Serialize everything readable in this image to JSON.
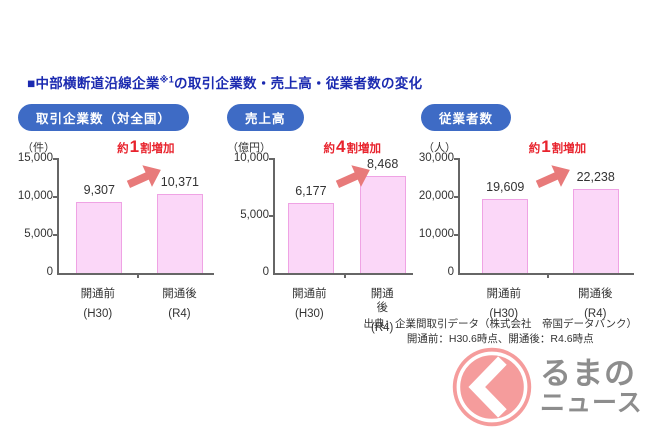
{
  "header": {
    "title_prefix": "■中部横断道沿線企業",
    "title_sup": "※1",
    "title_suffix": "の取引企業数・売上高・従業者数の変化"
  },
  "source": {
    "line1": "出典：企業間取引データ（株式会社　帝国データバンク）",
    "line2": "開通前：H30.6時点、開通後：R4.6時点"
  },
  "logo": {
    "mark": "く",
    "line1": "るまの",
    "line2": "ニュース"
  },
  "colors": {
    "title_blue": "#1b2ab0",
    "pill_blue": "#3e6bc5",
    "bar_fill": "#fbd7f8",
    "bar_border": "#efa3e4",
    "annot_red": "#e8232d",
    "arrow_salmon": "#e87a7a",
    "axis": "#666666",
    "text_dark": "#333333",
    "logo_salmon": "#f59c9c",
    "logo_gray": "#8d8d8d"
  },
  "chart_data": [
    {
      "type": "bar",
      "title": "取引企業数（対全国）",
      "unit": "（件）",
      "ymax": 15000,
      "ylim": [
        0,
        15000
      ],
      "ticks": [
        {
          "v": 15000,
          "label": "15,000"
        },
        {
          "v": 10000,
          "label": "10,000"
        },
        {
          "v": 5000,
          "label": "5,000"
        },
        {
          "v": 0,
          "label": "0"
        }
      ],
      "categories": [
        {
          "label": "開通前",
          "sub": "(H30)"
        },
        {
          "label": "開通後",
          "sub": "(R4)"
        }
      ],
      "values": [
        9307,
        10371
      ],
      "value_labels": [
        "9,307",
        "10,371"
      ],
      "annotation": {
        "prefix": "約",
        "number": "1",
        "suffix": "割増加"
      }
    },
    {
      "type": "bar",
      "title": "売上高",
      "unit": "（億円）",
      "ymax": 10000,
      "ylim": [
        0,
        10000
      ],
      "ticks": [
        {
          "v": 10000,
          "label": "10,000"
        },
        {
          "v": 5000,
          "label": "5,000"
        },
        {
          "v": 0,
          "label": "0"
        }
      ],
      "categories": [
        {
          "label": "開通前",
          "sub": "(H30)"
        },
        {
          "label": "開通後",
          "sub": "(R4)"
        }
      ],
      "values": [
        6177,
        8468
      ],
      "value_labels": [
        "6,177",
        "8,468"
      ],
      "annotation": {
        "prefix": "約",
        "number": "4",
        "suffix": "割増加"
      }
    },
    {
      "type": "bar",
      "title": "従業者数",
      "unit": "（人）",
      "ymax": 30000,
      "ylim": [
        0,
        30000
      ],
      "ticks": [
        {
          "v": 30000,
          "label": "30,000"
        },
        {
          "v": 20000,
          "label": "20,000"
        },
        {
          "v": 10000,
          "label": "10,000"
        },
        {
          "v": 0,
          "label": "0"
        }
      ],
      "categories": [
        {
          "label": "開通前",
          "sub": "(H30)"
        },
        {
          "label": "開通後",
          "sub": "(R4)"
        }
      ],
      "values": [
        19609,
        22238
      ],
      "value_labels": [
        "19,609",
        "22,238"
      ],
      "annotation": {
        "prefix": "約",
        "number": "1",
        "suffix": "割増加"
      }
    }
  ]
}
